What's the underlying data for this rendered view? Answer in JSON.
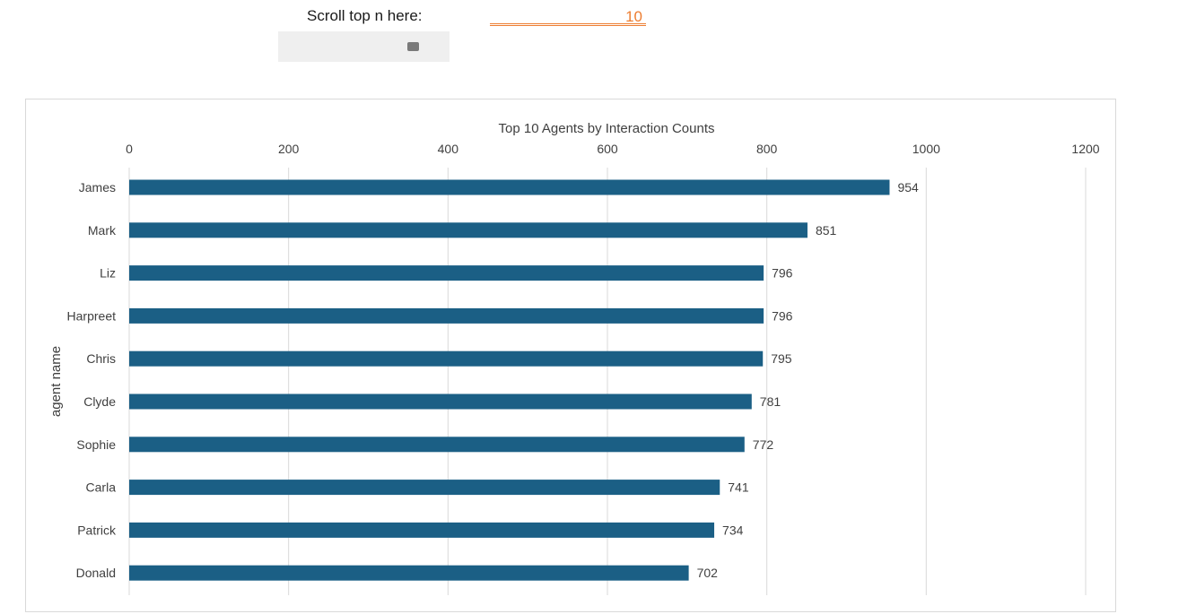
{
  "control": {
    "label": "Scroll top n here:",
    "value": "10"
  },
  "colors": {
    "bar": "#1b5f85",
    "gridline": "#d9d9d9",
    "accent": "#ed7d31",
    "scrollbar_track": "#efefef",
    "scrollbar_thumb": "#7a7a7a"
  },
  "chart_data": {
    "type": "bar",
    "orientation": "horizontal",
    "title": "Top 10 Agents by Interaction Counts",
    "xlabel": "",
    "ylabel": "agent name",
    "xlim": [
      0,
      1200
    ],
    "xticks": [
      0,
      200,
      400,
      600,
      800,
      1000,
      1200
    ],
    "x_axis_position": "top",
    "grid": true,
    "legend": "none",
    "categories": [
      "James",
      "Mark",
      "Liz",
      "Harpreet",
      "Chris",
      "Clyde",
      "Sophie",
      "Carla",
      "Patrick",
      "Donald"
    ],
    "values": [
      954,
      851,
      796,
      796,
      795,
      781,
      772,
      741,
      734,
      702
    ],
    "data_labels": true
  }
}
